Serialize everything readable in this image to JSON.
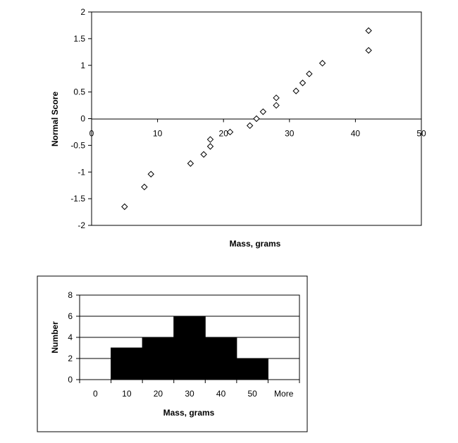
{
  "chart_data": [
    {
      "type": "scatter",
      "xlabel": "Mass, grams",
      "ylabel": "Normal Score",
      "xlim": [
        0,
        50
      ],
      "ylim": [
        -2,
        2
      ],
      "xticks": [
        "0",
        "10",
        "20",
        "30",
        "40",
        "50"
      ],
      "yticks": [
        "2",
        "1.5",
        "1",
        "0.5",
        "0",
        "-0.5",
        "-1",
        "-1.5",
        "-2"
      ],
      "grid": false,
      "marker": "diamond",
      "points": [
        {
          "x": 5,
          "y": -1.65
        },
        {
          "x": 8,
          "y": -1.28
        },
        {
          "x": 9,
          "y": -1.04
        },
        {
          "x": 15,
          "y": -0.84
        },
        {
          "x": 17,
          "y": -0.67
        },
        {
          "x": 18,
          "y": -0.52
        },
        {
          "x": 18,
          "y": -0.39
        },
        {
          "x": 21,
          "y": -0.25
        },
        {
          "x": 24,
          "y": -0.13
        },
        {
          "x": 25,
          "y": 0.0
        },
        {
          "x": 26,
          "y": 0.13
        },
        {
          "x": 28,
          "y": 0.25
        },
        {
          "x": 28,
          "y": 0.39
        },
        {
          "x": 31,
          "y": 0.52
        },
        {
          "x": 32,
          "y": 0.67
        },
        {
          "x": 33,
          "y": 0.84
        },
        {
          "x": 35,
          "y": 1.04
        },
        {
          "x": 42,
          "y": 1.28
        },
        {
          "x": 42,
          "y": 1.65
        }
      ]
    },
    {
      "type": "bar",
      "xlabel": "Mass, grams",
      "ylabel": "Number",
      "categories": [
        "0",
        "10",
        "20",
        "30",
        "40",
        "50",
        "More"
      ],
      "values": [
        0,
        3,
        4,
        6,
        4,
        2,
        0
      ],
      "ylim": [
        0,
        8
      ],
      "yticks": [
        "8",
        "6",
        "4",
        "2",
        "0"
      ],
      "grid": true,
      "bar_color": "#000000"
    }
  ]
}
